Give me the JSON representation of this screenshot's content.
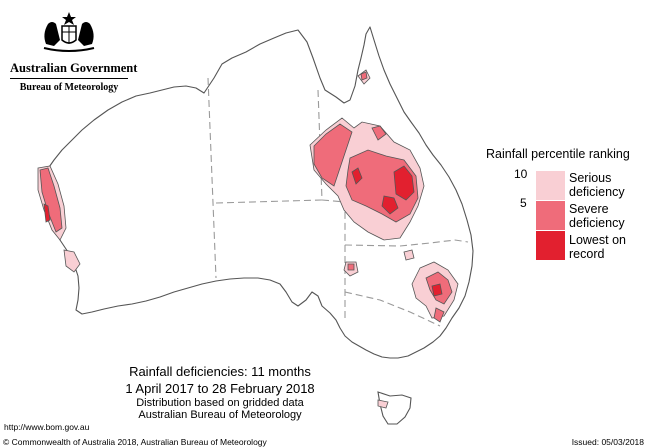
{
  "logo": {
    "emblem": "coat-of-arms-icon",
    "name": "Australian Government",
    "agency": "Bureau of Meteorology"
  },
  "legend": {
    "title": "Rainfall percentile ranking",
    "ticks": [
      "10",
      "5"
    ],
    "items": [
      {
        "label_line1": "Serious",
        "label_line2": "deficiency",
        "color": "#f9cfd4"
      },
      {
        "label_line1": "Severe",
        "label_line2": "deficiency",
        "color": "#ef6c7a"
      },
      {
        "label_line1": "Lowest on",
        "label_line2": "record",
        "color": "#e2202f"
      }
    ]
  },
  "caption": {
    "title": "Rainfall deficiencies: 11 months",
    "period": "1 April 2017 to 28 February 2018",
    "note1": "Distribution based on gridded data",
    "note2": "Australian Bureau of Meteorology"
  },
  "footer": {
    "url": "http://www.bom.gov.au",
    "copyright": "© Commonwealth of Australia 2018, Australian Bureau of Meteorology",
    "issued": "Issued: 05/03/2018"
  },
  "colors": {
    "serious": "#f9cfd4",
    "severe": "#ef6c7a",
    "lowest": "#e2202f",
    "outline": "#555555",
    "border": "#9a9a9a"
  }
}
